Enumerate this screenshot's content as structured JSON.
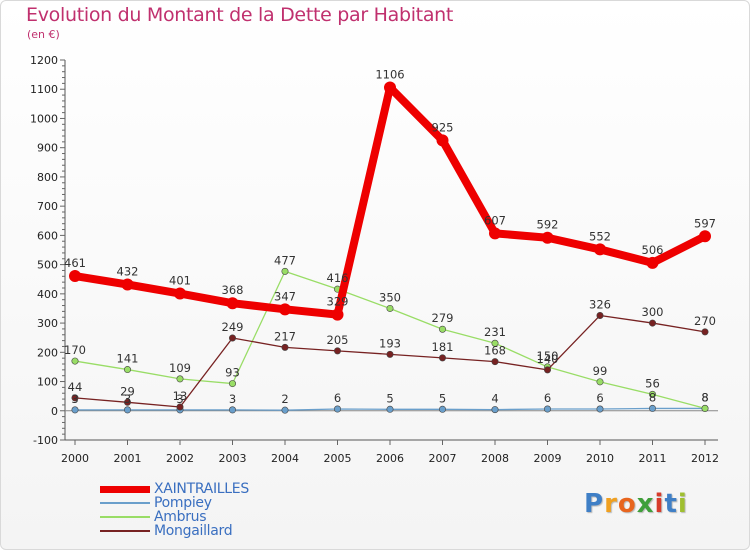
{
  "header": {
    "title": "Evolution du Montant de la Dette par Habitant",
    "unit": "(en €)"
  },
  "logo": {
    "letters": [
      "P",
      "r",
      "o",
      "x",
      "i",
      "t",
      "i"
    ],
    "colors": [
      "#3f7fc6",
      "#f0a020",
      "#e8651e",
      "#3f9f3a",
      "#d73c2c",
      "#3f7fc6",
      "#9fbf30"
    ]
  },
  "chart_data": {
    "type": "line",
    "x": [
      2000,
      2001,
      2002,
      2003,
      2004,
      2005,
      2006,
      2007,
      2008,
      2009,
      2010,
      2011,
      2012
    ],
    "ylim": [
      -100,
      1200
    ],
    "yticks": [
      -100,
      0,
      100,
      200,
      300,
      400,
      500,
      600,
      700,
      800,
      900,
      1000,
      1100,
      1200
    ],
    "grid": false,
    "legend_position": "bottom-left",
    "series": [
      {
        "name": "XAINTRAILLES",
        "color": "#ee0000",
        "values": [
          461,
          432,
          401,
          368,
          347,
          329,
          1106,
          925,
          607,
          592,
          552,
          506,
          597
        ]
      },
      {
        "name": "Pompiey",
        "color": "#6a9fcb",
        "values": [
          3,
          3,
          3,
          3,
          2,
          6,
          5,
          5,
          4,
          6,
          6,
          8,
          8
        ]
      },
      {
        "name": "Ambrus",
        "color": "#99dd66",
        "values": [
          170,
          141,
          109,
          93,
          477,
          416,
          350,
          279,
          231,
          150,
          99,
          56,
          8
        ]
      },
      {
        "name": "Mongaillard",
        "color": "#772222",
        "values": [
          44,
          29,
          13,
          249,
          217,
          205,
          193,
          181,
          168,
          140,
          326,
          300,
          270
        ]
      }
    ]
  }
}
